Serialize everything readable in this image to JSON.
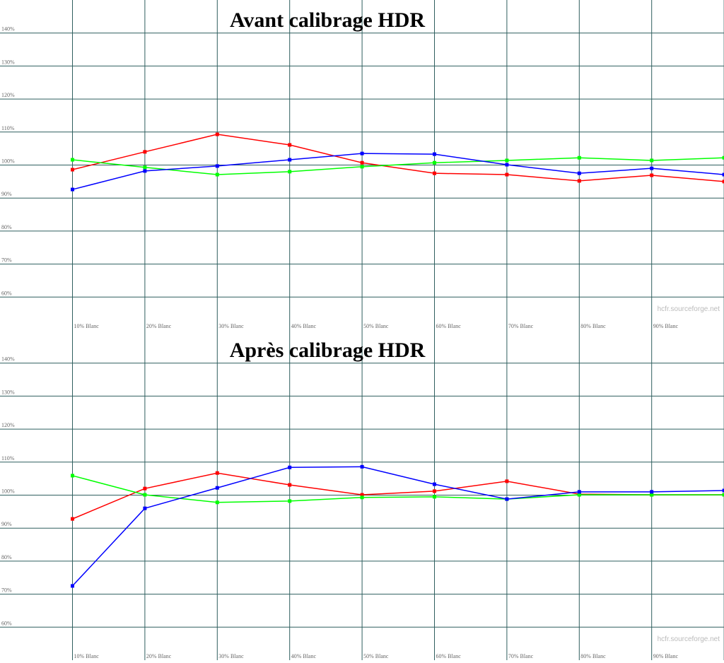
{
  "chart_data": [
    {
      "type": "line",
      "title": "Avant calibrage HDR",
      "categories": [
        "10% Blanc",
        "20% Blanc",
        "30% Blanc",
        "40% Blanc",
        "50% Blanc",
        "60% Blanc",
        "70% Blanc",
        "80% Blanc",
        "90% Blanc",
        null
      ],
      "series": [
        {
          "color": "#ff0000",
          "values": [
            98.6,
            104.0,
            109.3,
            106.1,
            100.7,
            97.5,
            97.1,
            95.2,
            96.9,
            95.0
          ]
        },
        {
          "color": "#00ff00",
          "values": [
            101.6,
            99.3,
            97.1,
            98.0,
            99.5,
            100.7,
            101.4,
            102.2,
            101.4,
            102.2
          ]
        },
        {
          "color": "#0000ff",
          "values": [
            92.6,
            98.2,
            99.7,
            101.6,
            103.5,
            103.3,
            100.1,
            97.5,
            99.0,
            97.1
          ]
        }
      ],
      "ylim": [
        50,
        150
      ],
      "yticks": [
        {
          "value": 60,
          "label": "60%"
        },
        {
          "value": 70,
          "label": "70%"
        },
        {
          "value": 80,
          "label": "80%"
        },
        {
          "value": 90,
          "label": "90%"
        },
        {
          "value": 100,
          "label": "100%"
        },
        {
          "value": 110,
          "label": "110%"
        },
        {
          "value": 120,
          "label": "120%"
        },
        {
          "value": 130,
          "label": "130%"
        },
        {
          "value": 140,
          "label": "140%"
        }
      ],
      "reference_line": 100,
      "grid": true,
      "watermark": "hcfr.sourceforge.net"
    },
    {
      "type": "line",
      "title": "Après calibrage HDR",
      "categories": [
        "10% Blanc",
        "20% Blanc",
        "30% Blanc",
        "40% Blanc",
        "50% Blanc",
        "60% Blanc",
        "70% Blanc",
        "80% Blanc",
        "90% Blanc",
        null
      ],
      "series": [
        {
          "color": "#ff0000",
          "values": [
            92.8,
            102.0,
            106.7,
            103.1,
            100.1,
            101.2,
            104.2,
            100.3,
            100.1,
            100.1
          ]
        },
        {
          "color": "#00ff00",
          "values": [
            105.9,
            100.1,
            97.8,
            98.2,
            99.3,
            99.5,
            98.8,
            100.1,
            100.1,
            100.1
          ]
        },
        {
          "color": "#0000ff",
          "values": [
            72.5,
            96.0,
            102.2,
            108.4,
            108.6,
            103.3,
            98.8,
            101.0,
            101.0,
            101.4
          ]
        }
      ],
      "ylim": [
        50,
        150
      ],
      "yticks": [
        {
          "value": 60,
          "label": "60%"
        },
        {
          "value": 70,
          "label": "70%"
        },
        {
          "value": 80,
          "label": "80%"
        },
        {
          "value": 90,
          "label": "90%"
        },
        {
          "value": 100,
          "label": "100%"
        },
        {
          "value": 110,
          "label": "110%"
        },
        {
          "value": 120,
          "label": "120%"
        },
        {
          "value": 130,
          "label": "130%"
        },
        {
          "value": 140,
          "label": "140%"
        }
      ],
      "reference_line": 100,
      "grid": true,
      "watermark": "hcfr.sourceforge.net"
    }
  ]
}
